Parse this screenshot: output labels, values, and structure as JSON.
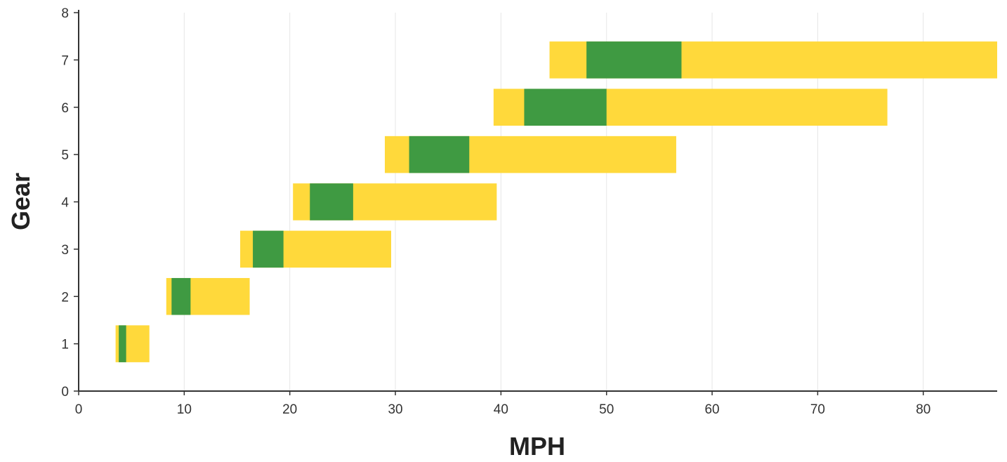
{
  "chart_data": {
    "type": "bar",
    "orientation": "horizontal-range",
    "xlabel": "MPH",
    "ylabel": "Gear",
    "xlim": [
      0,
      87
    ],
    "ylim": [
      0,
      8
    ],
    "x_ticks": [
      0,
      10,
      20,
      30,
      40,
      50,
      60,
      70,
      80
    ],
    "y_ticks": [
      0,
      1,
      2,
      3,
      4,
      5,
      6,
      7,
      8
    ],
    "grid": "vertical",
    "colors": {
      "yellow": "#FFD93B",
      "green": "#3F9A42",
      "grid": "#e6e6e6",
      "axis": "#333333"
    },
    "series": [
      {
        "gear": 1,
        "range": [
          3.5,
          6.7
        ],
        "green": [
          3.8,
          4.5
        ]
      },
      {
        "gear": 2,
        "range": [
          8.3,
          16.2
        ],
        "green": [
          8.8,
          10.6
        ]
      },
      {
        "gear": 3,
        "range": [
          15.3,
          29.6
        ],
        "green": [
          16.5,
          19.4
        ]
      },
      {
        "gear": 4,
        "range": [
          20.3,
          39.6
        ],
        "green": [
          21.9,
          26.0
        ]
      },
      {
        "gear": 5,
        "range": [
          29.0,
          56.6
        ],
        "green": [
          31.3,
          37.0
        ]
      },
      {
        "gear": 6,
        "range": [
          39.3,
          76.6
        ],
        "green": [
          42.2,
          50.0
        ]
      },
      {
        "gear": 7,
        "range": [
          44.6,
          87.0
        ],
        "green": [
          48.1,
          57.1
        ]
      }
    ]
  }
}
